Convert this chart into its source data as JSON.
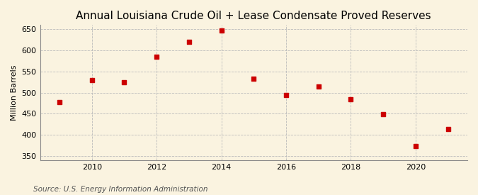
{
  "title": "Annual Louisiana Crude Oil + Lease Condensate Proved Reserves",
  "ylabel": "Million Barrels",
  "source": "Source: U.S. Energy Information Administration",
  "background_color": "#faf3e0",
  "years": [
    2009,
    2010,
    2011,
    2012,
    2013,
    2014,
    2015,
    2016,
    2017,
    2018,
    2019,
    2020,
    2021
  ],
  "values": [
    477,
    530,
    524,
    585,
    621,
    647,
    533,
    494,
    514,
    484,
    449,
    374,
    414
  ],
  "marker_color": "#cc0000",
  "marker_size": 18,
  "ylim": [
    340,
    660
  ],
  "yticks": [
    350,
    400,
    450,
    500,
    550,
    600,
    650
  ],
  "xticks": [
    2010,
    2012,
    2014,
    2016,
    2018,
    2020
  ],
  "grid_color": "#bbbbbb",
  "title_fontsize": 11,
  "label_fontsize": 8,
  "tick_fontsize": 8,
  "source_fontsize": 7.5
}
